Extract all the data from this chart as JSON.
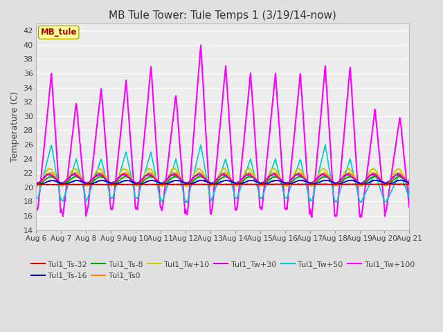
{
  "title": "MB Tule Tower: Tule Temps 1 (3/19/14-now)",
  "ylabel": "Temperature (C)",
  "ylim": [
    14,
    43
  ],
  "yticks": [
    14,
    16,
    18,
    20,
    22,
    24,
    26,
    28,
    30,
    32,
    34,
    36,
    38,
    40,
    42
  ],
  "n_days": 15,
  "x_labels": [
    "Aug 6",
    "Aug 7",
    "Aug 8",
    "Aug 9",
    "Aug 10",
    "Aug 11",
    "Aug 12",
    "Aug 13",
    "Aug 14",
    "Aug 15",
    "Aug 16",
    "Aug 17",
    "Aug 18",
    "Aug 19",
    "Aug 20",
    "Aug 21"
  ],
  "bg_color": "#e0e0e0",
  "plot_bg": "#ececec",
  "grid_color": "white",
  "legend_box_facecolor": "#ffff99",
  "legend_box_edgecolor": "#aaaa00",
  "series": [
    {
      "label": "Tul1_Ts-32",
      "color": "#cc0000",
      "lw": 1.2,
      "amp": 0.15,
      "base": 20.4
    },
    {
      "label": "Tul1_Ts-16",
      "color": "#0000cc",
      "lw": 1.2,
      "amp": 0.25,
      "base": 20.7
    },
    {
      "label": "Tul1_Ts-8",
      "color": "#00aa00",
      "lw": 1.2,
      "amp": 0.5,
      "base": 21.0
    },
    {
      "label": "Tul1_Ts0",
      "color": "#ff8800",
      "lw": 1.2,
      "amp": 0.8,
      "base": 21.2
    },
    {
      "label": "Tul1_Tw+10",
      "color": "#cccc00",
      "lw": 1.2,
      "amp": 1.2,
      "base": 21.4
    },
    {
      "label": "Tul1_Tw+30",
      "color": "#cc00cc",
      "lw": 1.2,
      "amp": 0.6,
      "base": 21.2
    },
    {
      "label": "Tul1_Tw+50",
      "color": "#00cccc",
      "lw": 1.2,
      "amp": 3.0,
      "base": 21.0
    },
    {
      "label": "Tul1_Tw+100",
      "color": "#ff00ff",
      "lw": 1.5,
      "amp": 12.0,
      "base": 21.0
    }
  ],
  "spike_peaks_tw100": [
    36,
    32,
    34,
    35,
    37,
    33,
    40,
    37,
    36,
    36,
    36,
    37,
    37,
    31,
    30
  ],
  "spike_troughs_tw100": [
    17,
    16,
    17,
    17,
    17,
    17,
    16,
    17,
    17,
    17,
    17,
    16,
    16,
    16,
    17
  ],
  "spike_peaks_tw50": [
    26,
    24,
    24,
    25,
    25,
    24,
    26,
    24,
    24,
    24,
    24,
    26,
    24,
    22,
    22
  ],
  "spike_troughs_tw50": [
    18.5,
    18,
    18.5,
    18.5,
    18.5,
    18,
    18,
    18.5,
    18.5,
    18.5,
    18.5,
    18,
    18,
    18,
    18
  ]
}
